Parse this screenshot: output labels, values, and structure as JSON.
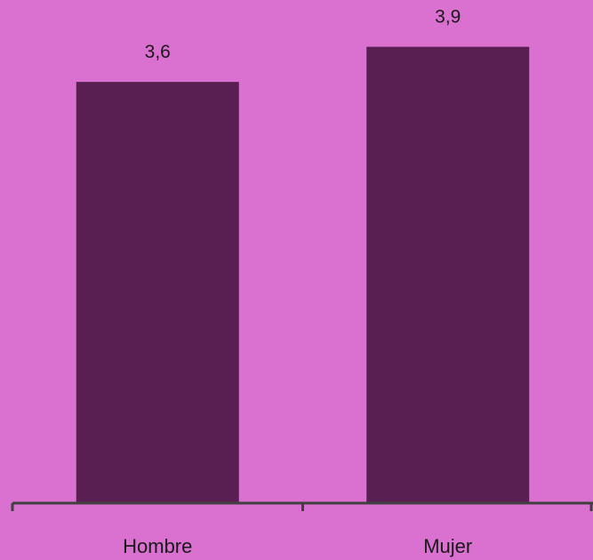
{
  "chart_data": {
    "type": "bar",
    "categories": [
      "Hombre",
      "Mujer"
    ],
    "values": [
      3.6,
      3.9
    ],
    "value_labels": [
      "3,6",
      "3,9"
    ],
    "title": "",
    "xlabel": "",
    "ylabel": "",
    "ylim": [
      0,
      4.3
    ],
    "grid": false,
    "legend": "none",
    "colors": {
      "background": "#da70d0",
      "bar": "#5a1f52",
      "axis": "#404040",
      "text": "#1a1a1a"
    }
  }
}
